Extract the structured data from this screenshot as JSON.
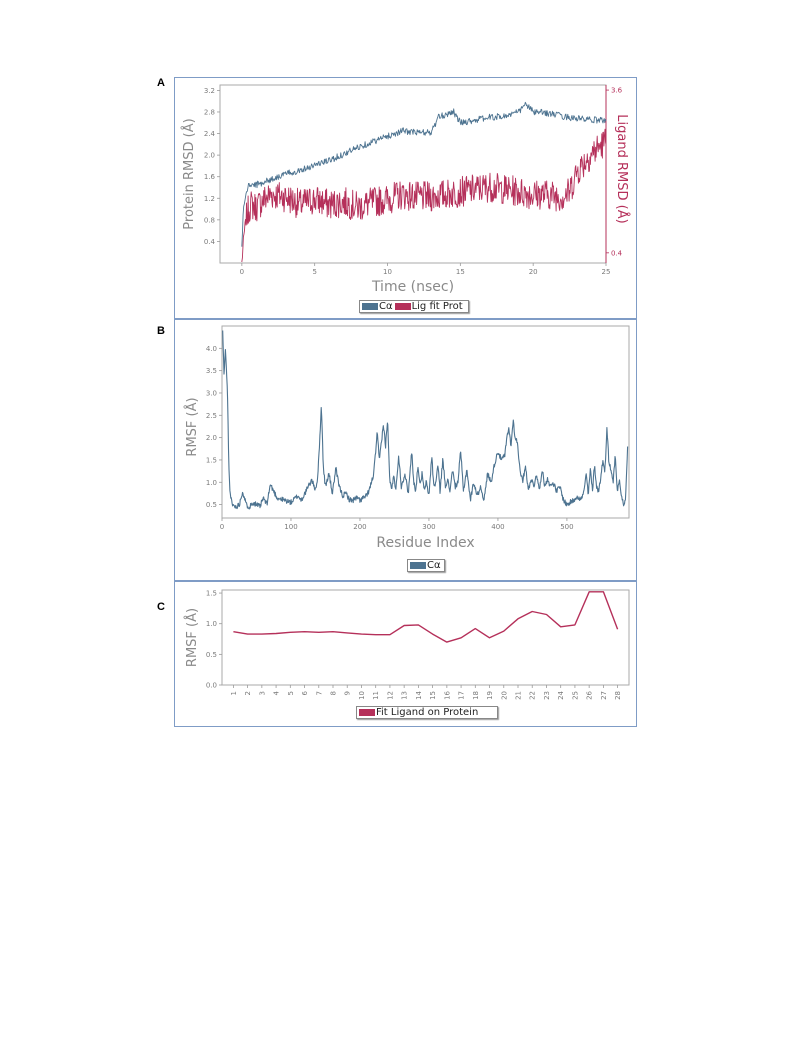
{
  "figure": {
    "panel_letters": [
      "A",
      "B",
      "C"
    ]
  },
  "colors": {
    "protein": "#4d7390",
    "ligand": "#b5305a",
    "axis": "#999999",
    "tick_text": "#7a7a7a",
    "label_text": "#8a8a8a"
  },
  "chart_data": [
    {
      "id": "A",
      "type": "line",
      "xlabel": "Time (nsec)",
      "ylabel": "Protein RMSD (Å)",
      "ylabel_right": "Ligand RMSD (Å)",
      "xlim": [
        -1.5,
        25
      ],
      "ylim": [
        0.0,
        3.3
      ],
      "ylim_right": [
        0.2,
        3.7
      ],
      "xticks": [
        0,
        5,
        10,
        15,
        20,
        25
      ],
      "yticks": [
        0.4,
        0.8,
        1.2,
        1.6,
        2.0,
        2.4,
        2.8,
        3.2
      ],
      "yticks_right": [
        0.4,
        3.6
      ],
      "legend": [
        "Cα",
        "Lig fit Prot"
      ],
      "legend_position": "bottom-center",
      "series": [
        {
          "name": "Cα",
          "axis": "left",
          "x": [
            0,
            0.1,
            0.3,
            0.5,
            1,
            2,
            3,
            4,
            5,
            6,
            7,
            8,
            9,
            10,
            11,
            12,
            13,
            13.5,
            14,
            14.5,
            15,
            16,
            17,
            18,
            19,
            19.5,
            20,
            21,
            22,
            23,
            24,
            25
          ],
          "values": [
            0.3,
            1.0,
            1.3,
            1.45,
            1.45,
            1.55,
            1.65,
            1.72,
            1.82,
            1.9,
            2.02,
            2.15,
            2.25,
            2.35,
            2.45,
            2.42,
            2.42,
            2.7,
            2.75,
            2.82,
            2.6,
            2.65,
            2.7,
            2.72,
            2.8,
            2.95,
            2.8,
            2.78,
            2.72,
            2.68,
            2.65,
            2.65
          ]
        },
        {
          "name": "Lig fit Prot",
          "axis": "right",
          "x": [
            0,
            0.1,
            0.2,
            0.4,
            0.6,
            1,
            1.5,
            2,
            3,
            4,
            5,
            6,
            7,
            8,
            9,
            10,
            11,
            12,
            13,
            14,
            15,
            16,
            17,
            18,
            19,
            20,
            21,
            22,
            22.5,
            23,
            24,
            25
          ],
          "values": [
            0.2,
            0.6,
            0.9,
            1.2,
            1.35,
            1.3,
            1.45,
            1.55,
            1.5,
            1.35,
            1.45,
            1.35,
            1.4,
            1.3,
            1.4,
            1.45,
            1.55,
            1.5,
            1.5,
            1.55,
            1.6,
            1.65,
            1.7,
            1.65,
            1.6,
            1.55,
            1.55,
            1.5,
            1.6,
            2.0,
            2.35,
            2.6
          ]
        }
      ]
    },
    {
      "id": "B",
      "type": "line",
      "xlabel": "Residue Index",
      "ylabel": "RMSF (Å)",
      "xlim": [
        0,
        590
      ],
      "ylim": [
        0.2,
        4.5
      ],
      "xticks": [
        0,
        100,
        200,
        300,
        400,
        500
      ],
      "yticks": [
        0.5,
        1.0,
        1.5,
        2.0,
        2.5,
        3.0,
        3.5,
        4.0
      ],
      "legend": [
        "Cα"
      ],
      "legend_position": "bottom-center",
      "series": [
        {
          "name": "Cα",
          "x": [
            1,
            3,
            5,
            8,
            10,
            12,
            15,
            20,
            25,
            30,
            35,
            40,
            45,
            50,
            55,
            60,
            65,
            70,
            80,
            90,
            100,
            110,
            115,
            120,
            125,
            130,
            135,
            138,
            141,
            144,
            147,
            150,
            155,
            160,
            165,
            170,
            175,
            180,
            185,
            190,
            195,
            200,
            205,
            210,
            215,
            220,
            225,
            228,
            231,
            234,
            237,
            240,
            243,
            246,
            249,
            252,
            256,
            260,
            265,
            270,
            275,
            278,
            281,
            284,
            287,
            290,
            293,
            296,
            300,
            304,
            307,
            310,
            313,
            316,
            320,
            324,
            327,
            330,
            334,
            338,
            342,
            346,
            350,
            355,
            360,
            365,
            370,
            375,
            380,
            385,
            390,
            395,
            400,
            405,
            410,
            413,
            416,
            419,
            422,
            425,
            428,
            432,
            436,
            440,
            444,
            448,
            452,
            456,
            460,
            464,
            468,
            472,
            476,
            480,
            485,
            490,
            495,
            500,
            505,
            510,
            515,
            520,
            525,
            528,
            531,
            534,
            537,
            540,
            543,
            546,
            549,
            552,
            555,
            558,
            561,
            564,
            567,
            570,
            573,
            576,
            579,
            582,
            585,
            588
          ],
          "values": [
            4.4,
            3.4,
            4.0,
            3.0,
            1.3,
            0.7,
            0.5,
            0.45,
            0.5,
            0.8,
            0.5,
            0.45,
            0.55,
            0.5,
            0.45,
            0.65,
            0.5,
            0.95,
            0.65,
            0.6,
            0.55,
            0.7,
            0.6,
            0.75,
            0.9,
            1.05,
            0.85,
            1.0,
            1.7,
            2.75,
            1.3,
            0.9,
            1.2,
            0.75,
            1.3,
            0.9,
            0.7,
            0.75,
            0.6,
            0.6,
            0.65,
            0.6,
            0.65,
            0.7,
            0.9,
            1.2,
            2.1,
            1.5,
            1.9,
            2.3,
            1.8,
            2.4,
            1.1,
            0.8,
            1.2,
            0.8,
            1.6,
            0.9,
            1.2,
            0.75,
            1.7,
            1.0,
            0.8,
            1.4,
            0.9,
            1.2,
            0.8,
            1.0,
            0.7,
            1.6,
            0.9,
            1.0,
            1.4,
            0.8,
            1.5,
            0.9,
            1.1,
            0.75,
            1.3,
            0.9,
            1.0,
            1.7,
            0.8,
            1.3,
            0.6,
            1.0,
            0.7,
            0.9,
            0.6,
            1.2,
            1.0,
            1.4,
            1.7,
            1.5,
            1.6,
            2.0,
            2.2,
            1.8,
            2.4,
            2.0,
            1.9,
            1.3,
            1.0,
            1.4,
            0.8,
            1.1,
            0.9,
            1.2,
            0.8,
            1.3,
            0.9,
            1.1,
            0.9,
            1.0,
            0.8,
            0.9,
            0.6,
            0.5,
            0.55,
            0.6,
            0.7,
            0.6,
            0.8,
            1.2,
            0.7,
            1.3,
            0.8,
            1.4,
            0.9,
            0.8,
            1.1,
            1.5,
            1.2,
            2.25,
            1.4,
            1.3,
            1.0,
            1.6,
            0.8,
            1.1,
            0.7,
            0.5,
            0.6,
            1.8
          ]
        }
      ]
    },
    {
      "id": "C",
      "type": "line",
      "xlabel": "",
      "ylabel": "RMSF (Å)",
      "xlim": [
        0.2,
        28.8
      ],
      "ylim": [
        0.0,
        1.55
      ],
      "xticks": [
        "1",
        "2",
        "3",
        "4",
        "5",
        "6",
        "7",
        "8",
        "9",
        "10",
        "11",
        "12",
        "13",
        "14",
        "15",
        "16",
        "17",
        "18",
        "19",
        "20",
        "21",
        "22",
        "23",
        "24",
        "25",
        "26",
        "27",
        "28"
      ],
      "yticks": [
        0.0,
        0.5,
        1.0,
        1.5
      ],
      "legend": [
        "Fit Ligand on Protein"
      ],
      "legend_position": "bottom-center",
      "series": [
        {
          "name": "Fit Ligand on Protein",
          "x": [
            1,
            2,
            3,
            4,
            5,
            6,
            7,
            8,
            9,
            10,
            11,
            12,
            13,
            14,
            15,
            16,
            17,
            18,
            19,
            20,
            21,
            22,
            23,
            24,
            25,
            26,
            27,
            28
          ],
          "values": [
            0.87,
            0.83,
            0.83,
            0.84,
            0.86,
            0.87,
            0.86,
            0.87,
            0.85,
            0.83,
            0.82,
            0.82,
            0.97,
            0.98,
            0.83,
            0.7,
            0.77,
            0.92,
            0.77,
            0.88,
            1.08,
            1.2,
            1.15,
            0.95,
            0.98,
            1.52,
            1.52,
            0.91
          ]
        }
      ]
    }
  ]
}
